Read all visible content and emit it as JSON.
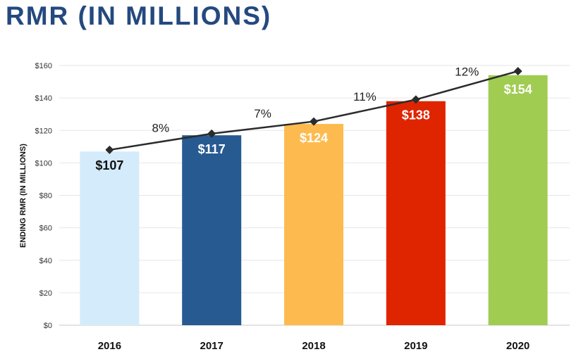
{
  "chart_data": {
    "type": "bar",
    "title": "RMR (IN MILLIONS)",
    "xlabel": "",
    "ylabel": "ENDING RMR (IN MILLIONS)",
    "ylim": [
      0,
      160
    ],
    "yticks": [
      0,
      20,
      40,
      60,
      80,
      100,
      120,
      140,
      160
    ],
    "ytick_labels": [
      "$0",
      "$20",
      "$40",
      "$60",
      "$80",
      "$100",
      "$120",
      "$140",
      "$160"
    ],
    "grid": true,
    "categories": [
      "2016",
      "2017",
      "2018",
      "2019",
      "2020"
    ],
    "values": [
      107,
      117,
      124,
      138,
      154
    ],
    "value_labels": [
      "$107",
      "$117",
      "$124",
      "$138",
      "$154"
    ],
    "colors": [
      "#d4ebfb",
      "#285a92",
      "#fdbb4f",
      "#df2400",
      "#a0cc52"
    ],
    "label_colors": [
      "#111111",
      "#ffffff",
      "#ffffff",
      "#ffffff",
      "#ffffff"
    ],
    "line_series": {
      "name": "Ending RMR trend",
      "values": [
        108,
        118,
        125.5,
        139,
        156.5
      ],
      "color": "#2b2b2b"
    },
    "growth_labels": [
      "8%",
      "7%",
      "11%",
      "12%"
    ]
  }
}
